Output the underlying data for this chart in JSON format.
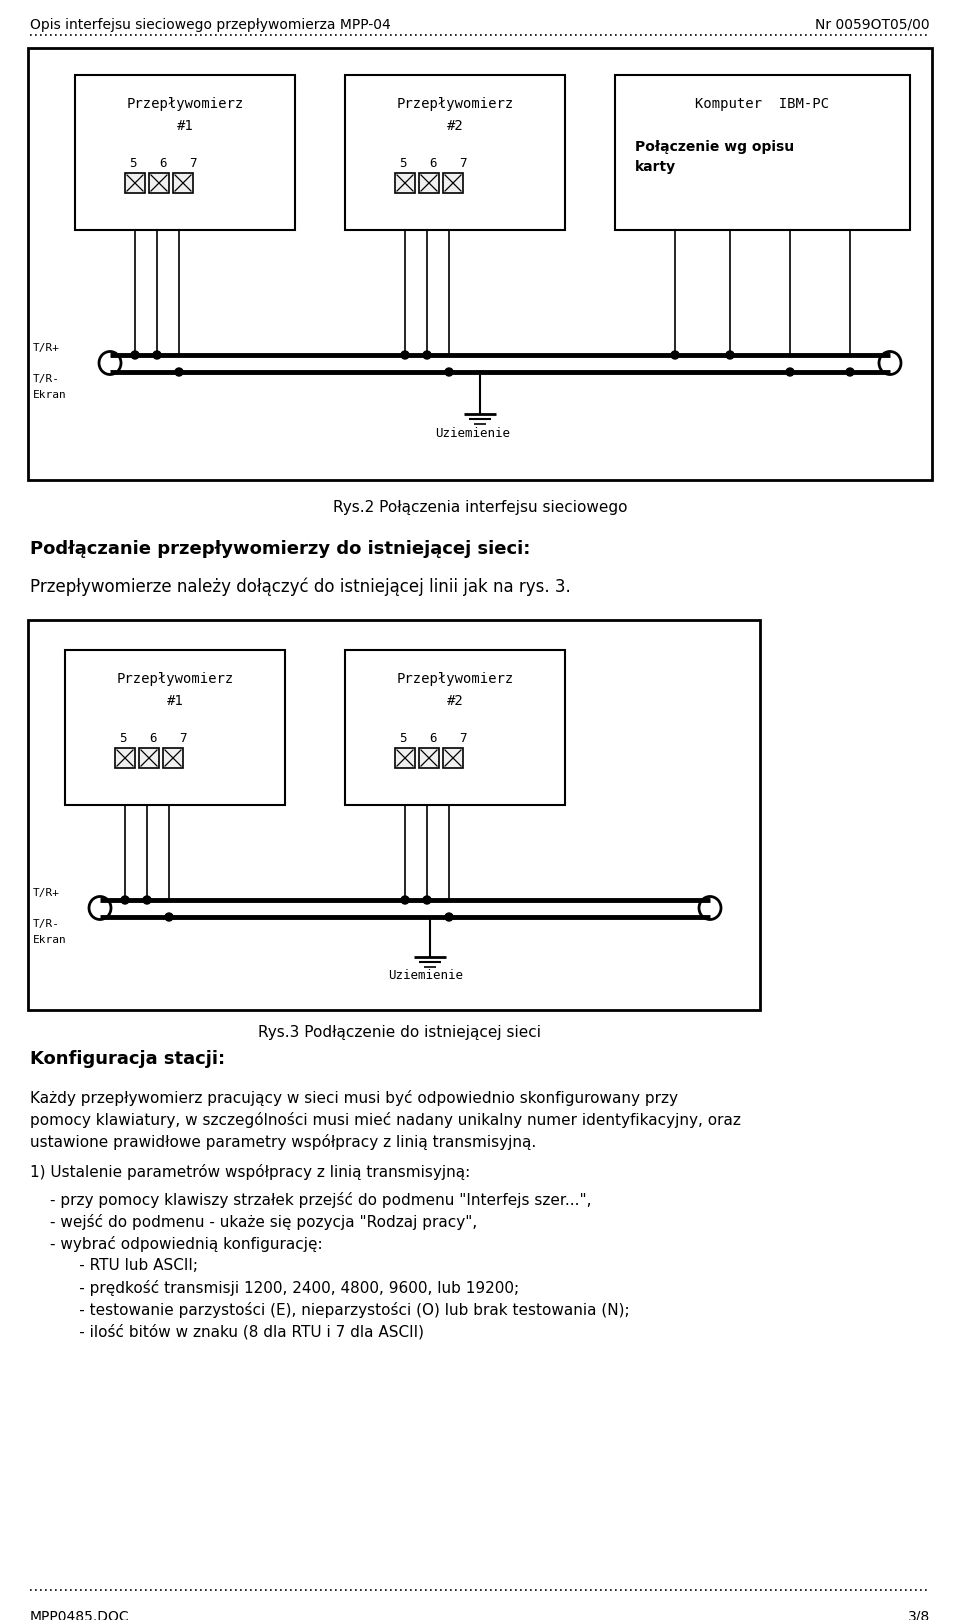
{
  "header_left": "Opis interfejsu sieciowego przepływomierza MPP-04",
  "header_right": "Nr 0059OT05/00",
  "footer_left": "MPP0485.DOC",
  "footer_right": "3/8",
  "fig1_caption": "Rys.2 Połączenia interfejsu sieciowego",
  "fig2_caption": "Rys.3 Podłączenie do istniejącej sieci",
  "section_title1": "Podłączanie przepływomierzy do istniejącej sieci:",
  "section_text1": "Przepływomierze należy dołączyć do istniejącej linii jak na rys. 3.",
  "section_title2": "Konfiguracja stacji:",
  "section_text2": "Każdy przepływomierz pracujący w sieci musi być odpowiednio skonfigurowany przy\npomocy klawiatury, w szczególności musi mieć nadany unikalny numer identyfikacyjny, oraz\nustawione prawidłowe parametry współpracy z linią transmisyjną.",
  "section_title3": "1) Ustalenie parametrów współpracy z linią transmisyjną:",
  "bullet_items": [
    "- przy pomocy klawiszy strzałek przejść do podmenu \"Interfejs szer...\",",
    "- wejść do podmenu - ukaże się pozycja \"Rodzaj pracy\",",
    "- wybrać odpowiednią konfigurację:",
    "      - RTU lub ASCII;",
    "      - prędkość transmisji 1200, 2400, 4800, 9600, lub 19200;",
    "      - testowanie parzystości (E), nieparzystości (O) lub brak testowania (N);",
    "      - ilość bitów w znaku (8 dla RTU i 7 dla ASCII)"
  ],
  "bg_color": "#ffffff",
  "text_color": "#000000"
}
